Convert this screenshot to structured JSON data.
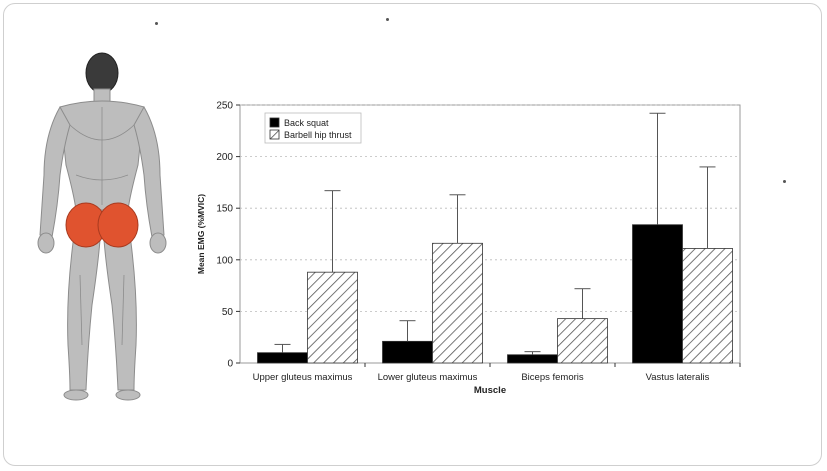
{
  "icons": {
    "figure": "anatomy-figure-back-view-glutes-highlighted"
  },
  "colors": {
    "glute_highlight": "#e0532f",
    "back_squat": "#000000",
    "hip_thrust_hatch": "#555555",
    "grid": "#bbbbbb"
  },
  "chart_data": {
    "type": "bar",
    "ylabel": "Mean EMG (%MVIC)",
    "xlabel": "Muscle",
    "ylim": [
      0,
      250
    ],
    "yticks": [
      0,
      50,
      100,
      150,
      200,
      250
    ],
    "grid": true,
    "legend_position": "top-left",
    "categories": [
      "Upper gluteus maximus",
      "Lower gluteus maximus",
      "Biceps femoris",
      "Vastus lateralis"
    ],
    "series": [
      {
        "name": "Back squat",
        "style": "solid-black",
        "values": [
          10,
          21,
          8,
          134
        ],
        "error": [
          8,
          20,
          3,
          108
        ]
      },
      {
        "name": "Barbell hip thrust",
        "style": "hatched",
        "values": [
          88,
          116,
          43,
          111
        ],
        "error": [
          79,
          47,
          29,
          79
        ]
      }
    ]
  }
}
